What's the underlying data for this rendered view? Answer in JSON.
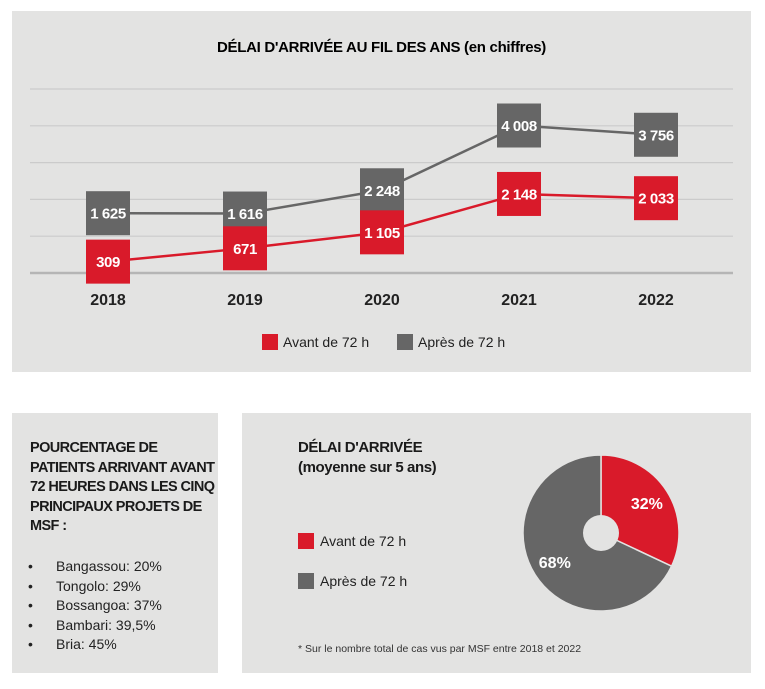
{
  "colors": {
    "panel_bg": "#e3e3e2",
    "red": "#d91a2a",
    "grey": "#666666",
    "gridline": "#cbcbcb",
    "baseline": "#b5b5b5"
  },
  "chart_data": [
    {
      "type": "line",
      "title": "DÉLAI D'ARRIVÉE AU FIL DES ANS (en chiffres)",
      "xlabel": "",
      "ylabel": "",
      "x": [
        "2018",
        "2019",
        "2020",
        "2021",
        "2022"
      ],
      "ylim": [
        0,
        5000
      ],
      "grid": true,
      "legend_position": "bottom-center",
      "series": [
        {
          "name": "Avant de 72 h",
          "color": "#d91a2a",
          "values": [
            309,
            671,
            1105,
            2148,
            2033
          ],
          "labels": [
            "309",
            "671",
            "1 105",
            "2 148",
            "2 033"
          ]
        },
        {
          "name": "Après de 72 h",
          "color": "#666666",
          "values": [
            1625,
            1616,
            2248,
            4008,
            3756
          ],
          "labels": [
            "1 625",
            "1 616",
            "2 248",
            "4 008",
            "3 756"
          ]
        }
      ]
    },
    {
      "type": "pie",
      "title": "DÉLAI D'ARRIVÉE",
      "subtitle": "(moyenne sur 5 ans)",
      "categories": [
        "Avant de 72 h",
        "Après de 72 h"
      ],
      "values": [
        32,
        68
      ],
      "labels": [
        "32%",
        "68%"
      ],
      "colors": [
        "#d91a2a",
        "#666666"
      ],
      "legend_position": "left",
      "footnote": "* Sur le nombre total de cas vus par MSF entre 2018 et 2022"
    }
  ],
  "left_panel": {
    "title": "POURCENTAGE DE PATIENTS ARRIVANT AVANT 72 HEURES DANS LES CINQ PRINCIPAUX PROJETS DE MSF :",
    "bullet": "•",
    "items": [
      "Bangassou: 20%",
      "Tongolo: 29%",
      "Bossangoa: 37%",
      "Bambari: 39,5%",
      "Bria: 45%"
    ]
  }
}
